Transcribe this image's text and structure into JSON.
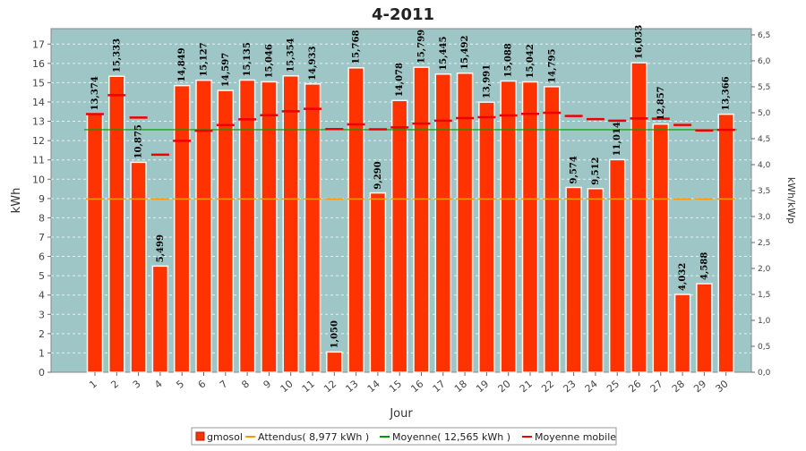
{
  "chart_data": {
    "type": "bar",
    "title": "4-2011",
    "xlabel": "Jour",
    "ylabel": "kWh",
    "ylabel_right": "kWh/kWp",
    "categories": [
      "1",
      "2",
      "3",
      "4",
      "5",
      "6",
      "7",
      "8",
      "9",
      "10",
      "11",
      "12",
      "13",
      "14",
      "15",
      "16",
      "17",
      "18",
      "19",
      "20",
      "21",
      "22",
      "23",
      "24",
      "25",
      "26",
      "27",
      "28",
      "29",
      "30"
    ],
    "ylim": [
      0,
      17.8
    ],
    "y_ticks": [
      "0",
      "1",
      "2",
      "3",
      "4",
      "5",
      "6",
      "7",
      "8",
      "9",
      "10",
      "11",
      "12",
      "13",
      "14",
      "15",
      "16",
      "17"
    ],
    "y2lim": [
      0,
      6.5
    ],
    "y2_ticks": [
      "0,0",
      "0,5",
      "1,0",
      "1,5",
      "2,0",
      "2,5",
      "3,0",
      "3,5",
      "4,0",
      "4,5",
      "5,0",
      "5,5",
      "6,0",
      "6,5"
    ],
    "grid": true,
    "series": [
      {
        "name": "gmosol",
        "kind": "bar",
        "color": "#ff3300",
        "values": [
          13.374,
          15.333,
          10.875,
          5.499,
          14.849,
          15.127,
          14.597,
          15.135,
          15.046,
          15.354,
          14.933,
          1.05,
          15.768,
          9.29,
          14.078,
          15.799,
          15.445,
          15.492,
          13.991,
          15.088,
          15.042,
          14.795,
          9.574,
          9.512,
          11.014,
          16.033,
          12.857,
          4.032,
          4.588,
          13.366
        ],
        "labels": [
          "13,374",
          "15,333",
          "10,875",
          "5,499",
          "14,849",
          "15,127",
          "14,597",
          "15,135",
          "15,046",
          "15,354",
          "14,933",
          "1,050",
          "15,768",
          "9,290",
          "14,078",
          "15,799",
          "15,445",
          "15,492",
          "13,991",
          "15,088",
          "15,042",
          "14,795",
          "9,574",
          "9,512",
          "11,014",
          "16,033",
          "12,857",
          "4,032",
          "4,588",
          "13,366"
        ]
      },
      {
        "name": "Attendus( 8,977 kWh )",
        "kind": "dash",
        "color": "#ff9900",
        "value": 8.977
      },
      {
        "name": "Moyenne( 12,565 kWh )",
        "kind": "line",
        "color": "#009900",
        "value": 12.565
      },
      {
        "name": "Moyenne mobile",
        "kind": "marker",
        "color": "#ee0000",
        "values": [
          13.374,
          14.354,
          13.194,
          11.27,
          11.986,
          12.509,
          12.807,
          13.098,
          13.314,
          13.518,
          13.647,
          12.597,
          12.841,
          12.587,
          12.686,
          12.88,
          13.03,
          13.166,
          13.209,
          13.303,
          13.386,
          13.441,
          13.273,
          13.115,
          13.031,
          13.146,
          13.136,
          12.811,
          12.527,
          12.555
        ]
      }
    ],
    "legend": {
      "position": "bottom",
      "items": [
        {
          "label": "gmosol",
          "color": "#ff3300",
          "shape": "square"
        },
        {
          "label": "Attendus( 8,977 kWh )",
          "color": "#ff9900",
          "shape": "line"
        },
        {
          "label": "Moyenne( 12,565 kWh )",
          "color": "#009900",
          "shape": "line"
        },
        {
          "label": "Moyenne mobile",
          "color": "#ee0000",
          "shape": "line"
        }
      ]
    }
  }
}
